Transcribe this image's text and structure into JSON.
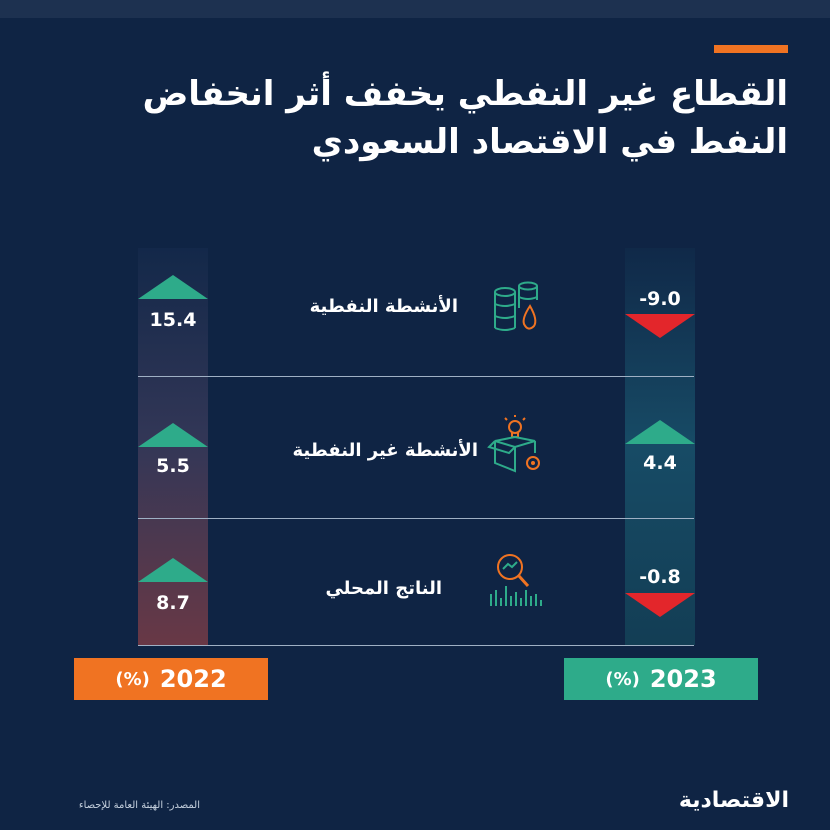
{
  "title": {
    "line1": "القطاع غير النفطي يخفف أثر انخفاض",
    "line2": "النفط في الاقتصاد السعودي"
  },
  "chart_data": {
    "type": "table",
    "unit": "(%)",
    "years": [
      "2022",
      "2023"
    ],
    "rows": [
      {
        "label": "الأنشطة النفطية",
        "icon": "oil-barrels-icon",
        "v2022": 15.4,
        "v2022_text": "15.4",
        "dir2022": "up",
        "v2023": -9.0,
        "v2023_text": "-9.0",
        "dir2023": "down"
      },
      {
        "label": "الأنشطة غير النفطية",
        "icon": "box-lightbulb-gear-icon",
        "v2022": 5.5,
        "v2022_text": "5.5",
        "dir2022": "up",
        "v2023": 4.4,
        "v2023_text": "4.4",
        "dir2023": "up"
      },
      {
        "label": "الناتج المحلي",
        "icon": "magnifier-bar-chart-icon",
        "v2022": 8.7,
        "v2022_text": "8.7",
        "dir2022": "up",
        "v2023": -0.8,
        "v2023_text": "-0.8",
        "dir2023": "down"
      }
    ]
  },
  "legend": {
    "y2022": "2022",
    "y2023": "2023",
    "unit": "(%)"
  },
  "colors": {
    "background": "#0f2444",
    "up": "#2eab8a",
    "down": "#e3262b",
    "year2022": "#f07322",
    "year2023": "#2eab8a",
    "icon_teal": "#2eab8a",
    "icon_orange": "#f07322"
  },
  "footer": {
    "source": "المصدر: الهيئة العامة للإحصاء",
    "logo": "الاقتصادية"
  }
}
